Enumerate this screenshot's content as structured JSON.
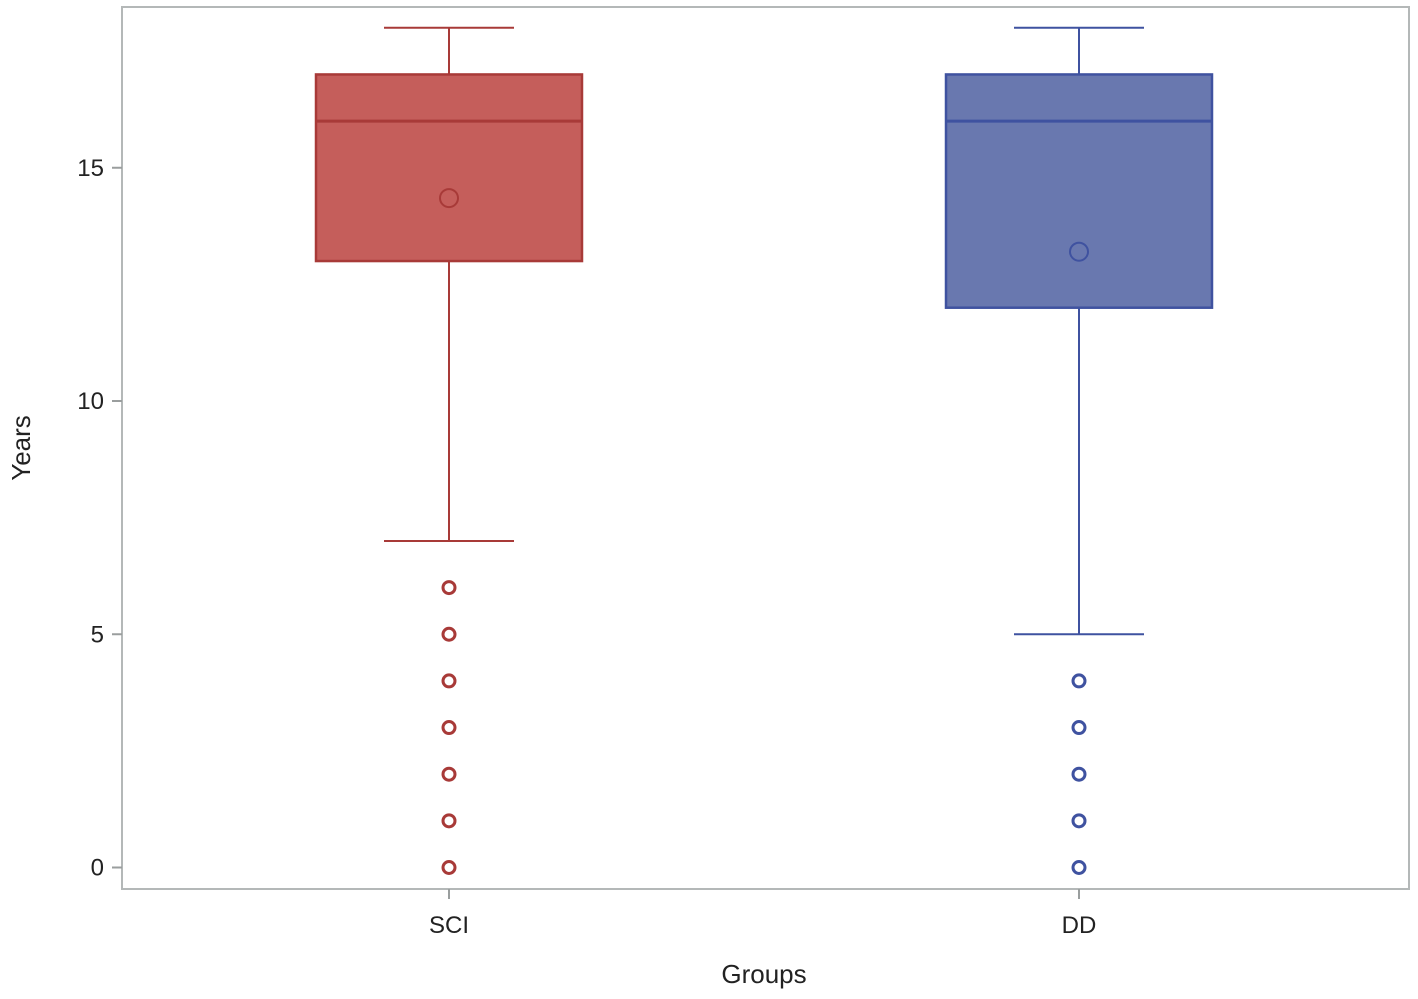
{
  "chart_data": {
    "type": "box",
    "xlabel": "Groups",
    "ylabel": "Years",
    "ylim": [
      -0.5,
      18.5
    ],
    "y_ticks": [
      0,
      5,
      10,
      15
    ],
    "grid": false,
    "legend": "none",
    "categories": [
      "SCI",
      "DD"
    ],
    "series": [
      {
        "category": "SCI",
        "color": "#c0504d",
        "stroke": "#a83a38",
        "whisker_low": 7,
        "q1": 13,
        "median": 16,
        "q3": 17,
        "whisker_high": 18,
        "mean": 14.35,
        "outliers": [
          6,
          5,
          4,
          3,
          2,
          1,
          0
        ]
      },
      {
        "category": "DD",
        "color": "#5c6da8",
        "stroke": "#3f52a0",
        "whisker_low": 5,
        "q1": 12,
        "median": 16,
        "q3": 17,
        "whisker_high": 18,
        "mean": 13.2,
        "outliers": [
          4,
          3,
          2,
          1,
          0
        ]
      }
    ]
  }
}
